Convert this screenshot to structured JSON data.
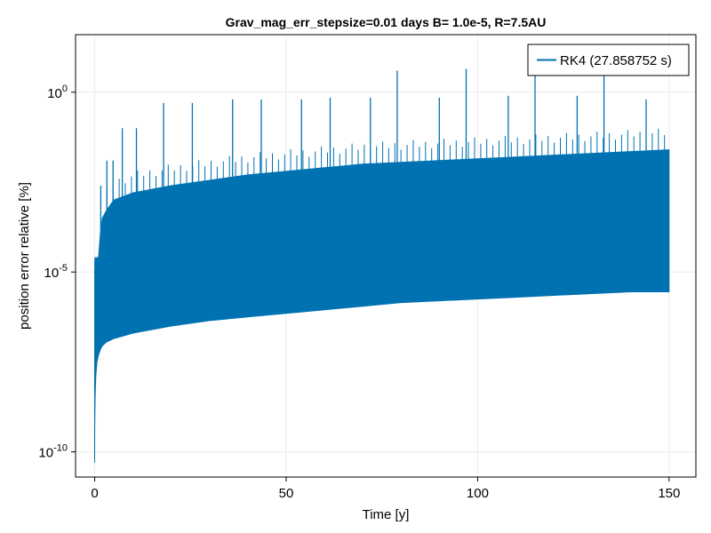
{
  "chart_data": {
    "type": "line",
    "title": "Grav_mag_err_stepsize=0.01 days B= 1.0e-5, R=7.5AU",
    "xlabel": "Time [y]",
    "ylabel": "position error relative [%]",
    "xlim": [
      -5,
      157
    ],
    "ylim_log10": [
      -10.7,
      1.6
    ],
    "y_scale": "log",
    "grid": true,
    "legend_position": "top-right",
    "x_ticks": [
      0,
      50,
      100,
      150
    ],
    "x_tick_labels": [
      "0",
      "50",
      "100",
      "150"
    ],
    "y_ticks_log10": [
      -10,
      -5,
      0
    ],
    "y_tick_labels": [
      {
        "base": "10",
        "exp": "-10"
      },
      {
        "base": "10",
        "exp": "-5"
      },
      {
        "base": "10",
        "exp": "0"
      }
    ],
    "series": [
      {
        "name": "RK4 (27.858752 s)",
        "color": "#0072b2",
        "x_start": 0,
        "x_end": 150,
        "envelope": {
          "x": [
            0,
            0.02,
            0.1,
            0.3,
            0.6,
            1,
            1.5,
            2,
            3,
            5,
            10,
            20,
            30,
            40,
            50,
            60,
            70,
            80,
            90,
            100,
            110,
            120,
            130,
            140,
            150
          ],
          "lower_log10": [
            -10.3,
            -9.3,
            -8.5,
            -7.9,
            -7.5,
            -7.3,
            -7.15,
            -7.05,
            -6.95,
            -6.85,
            -6.7,
            -6.5,
            -6.35,
            -6.25,
            -6.15,
            -6.05,
            -5.95,
            -5.85,
            -5.8,
            -5.75,
            -5.7,
            -5.65,
            -5.6,
            -5.55,
            -5.55
          ],
          "upper_log10": [
            -5.0,
            -4.7,
            -4.6,
            -4.6,
            -4.6,
            -4.6,
            -3.9,
            -3.5,
            -3.3,
            -3.0,
            -2.8,
            -2.6,
            -2.45,
            -2.3,
            -2.2,
            -2.1,
            -2.0,
            -1.95,
            -1.9,
            -1.85,
            -1.8,
            -1.75,
            -1.7,
            -1.65,
            -1.6
          ]
        },
        "spike_period_years": 1.6,
        "spike_peaks": [
          {
            "x": 1.6,
            "y_log10": -2.6
          },
          {
            "x": 3.2,
            "y_log10": -1.9
          },
          {
            "x": 4.8,
            "y_log10": -1.9
          },
          {
            "x": 7.2,
            "y_log10": -1.0
          },
          {
            "x": 10.9,
            "y_log10": -1.0
          },
          {
            "x": 18,
            "y_log10": -0.3
          },
          {
            "x": 25.5,
            "y_log10": -0.3
          },
          {
            "x": 36,
            "y_log10": -0.2
          },
          {
            "x": 43.5,
            "y_log10": -0.2
          },
          {
            "x": 54,
            "y_log10": -0.2
          },
          {
            "x": 61.5,
            "y_log10": -0.15
          },
          {
            "x": 72,
            "y_log10": -0.15
          },
          {
            "x": 79,
            "y_log10": 0.6
          },
          {
            "x": 90,
            "y_log10": -0.15
          },
          {
            "x": 97,
            "y_log10": 0.65
          },
          {
            "x": 108,
            "y_log10": -0.1
          },
          {
            "x": 115,
            "y_log10": 0.7
          },
          {
            "x": 126,
            "y_log10": -0.1
          },
          {
            "x": 133,
            "y_log10": 0.8
          },
          {
            "x": 144,
            "y_log10": -0.2
          }
        ]
      }
    ]
  }
}
